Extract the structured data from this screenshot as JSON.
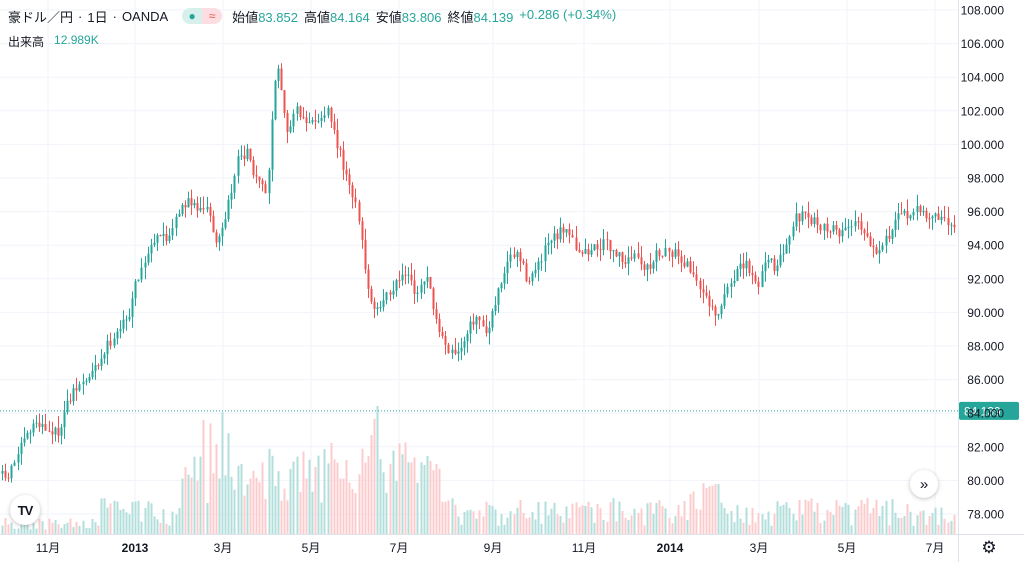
{
  "legend": {
    "symbol": "豪ドル／円",
    "interval": "1日",
    "source": "OANDA",
    "ohlc": [
      {
        "label": "始値",
        "value": "83.852"
      },
      {
        "label": "高値",
        "value": "84.164"
      },
      {
        "label": "安値",
        "value": "83.806"
      },
      {
        "label": "終値",
        "value": "84.139"
      }
    ],
    "change": "+0.286 (+0.34%)",
    "badge_left": "●",
    "badge_right": "≈"
  },
  "volume_legend": {
    "label": "出来高",
    "value": "12.989K"
  },
  "price_label": "84.139",
  "icons": {
    "logo": "tradingview-logo-icon",
    "scroll": "double-chevron-right-icon",
    "settings": "gear-icon"
  },
  "colors": {
    "up": "#26a69a",
    "down": "#ef5350",
    "up_volume": "#b2dfdb",
    "down_volume": "#fccbcd",
    "last_price": "#26a69a"
  },
  "chart_data": {
    "type": "candlestick",
    "y_axis": {
      "ticks": [
        "108.000",
        "106.000",
        "104.000",
        "102.000",
        "100.000",
        "98.000",
        "96.000",
        "94.000",
        "92.000",
        "90.000",
        "88.000",
        "86.000",
        "84.000",
        "82.000",
        "80.000",
        "78.000"
      ],
      "range": [
        77,
        108.5
      ]
    },
    "x_axis": {
      "ticks": [
        {
          "label": "11月",
          "bold": false
        },
        {
          "label": "2013",
          "bold": true
        },
        {
          "label": "3月",
          "bold": false
        },
        {
          "label": "5月",
          "bold": false
        },
        {
          "label": "7月",
          "bold": false
        },
        {
          "label": "9月",
          "bold": false
        },
        {
          "label": "11月",
          "bold": false
        },
        {
          "label": "2014",
          "bold": true
        },
        {
          "label": "3月",
          "bold": false
        },
        {
          "label": "5月",
          "bold": false
        },
        {
          "label": "7月",
          "bold": false
        }
      ]
    },
    "last_price": 84.139,
    "price_path": [
      [
        0,
        80.5
      ],
      [
        10,
        80.0
      ],
      [
        20,
        81.5
      ],
      [
        30,
        82.6
      ],
      [
        40,
        83.6
      ],
      [
        50,
        83.0
      ],
      [
        60,
        82.8
      ],
      [
        70,
        84.5
      ],
      [
        80,
        85.5
      ],
      [
        90,
        86.0
      ],
      [
        100,
        86.8
      ],
      [
        110,
        88.0
      ],
      [
        120,
        89.0
      ],
      [
        130,
        89.5
      ],
      [
        140,
        92.0
      ],
      [
        150,
        93.5
      ],
      [
        160,
        94.8
      ],
      [
        170,
        94.3
      ],
      [
        180,
        96.0
      ],
      [
        190,
        96.5
      ],
      [
        200,
        96.3
      ],
      [
        210,
        96.5
      ],
      [
        220,
        94.0
      ],
      [
        230,
        96.0
      ],
      [
        240,
        99.0
      ],
      [
        250,
        99.4
      ],
      [
        260,
        98.0
      ],
      [
        270,
        97.2
      ],
      [
        275,
        102.0
      ],
      [
        280,
        104.5
      ],
      [
        285,
        103.0
      ],
      [
        290,
        101.0
      ],
      [
        300,
        102.0
      ],
      [
        310,
        101.0
      ],
      [
        320,
        101.5
      ],
      [
        330,
        102.0
      ],
      [
        340,
        100.0
      ],
      [
        350,
        98.0
      ],
      [
        360,
        96.0
      ],
      [
        365,
        94.0
      ],
      [
        370,
        91.5
      ],
      [
        380,
        90.0
      ],
      [
        390,
        91.0
      ],
      [
        400,
        92.0
      ],
      [
        410,
        92.3
      ],
      [
        420,
        91.0
      ],
      [
        430,
        92.0
      ],
      [
        440,
        89.0
      ],
      [
        450,
        88.0
      ],
      [
        460,
        87.6
      ],
      [
        470,
        89.0
      ],
      [
        480,
        89.5
      ],
      [
        490,
        88.5
      ],
      [
        500,
        91.0
      ],
      [
        510,
        93.0
      ],
      [
        520,
        93.5
      ],
      [
        530,
        92.0
      ],
      [
        540,
        92.5
      ],
      [
        550,
        94.0
      ],
      [
        560,
        94.5
      ],
      [
        570,
        95.2
      ],
      [
        580,
        93.8
      ],
      [
        590,
        93.5
      ],
      [
        600,
        94.0
      ],
      [
        610,
        94.0
      ],
      [
        620,
        93.5
      ],
      [
        630,
        93.0
      ],
      [
        640,
        93.5
      ],
      [
        650,
        92.5
      ],
      [
        660,
        93.5
      ],
      [
        670,
        93.8
      ],
      [
        680,
        93.5
      ],
      [
        690,
        92.8
      ],
      [
        700,
        92.0
      ],
      [
        710,
        90.5
      ],
      [
        720,
        89.5
      ],
      [
        730,
        91.5
      ],
      [
        740,
        92.5
      ],
      [
        750,
        92.8
      ],
      [
        760,
        91.5
      ],
      [
        770,
        93.5
      ],
      [
        780,
        92.5
      ],
      [
        790,
        94.5
      ],
      [
        800,
        95.8
      ],
      [
        810,
        95.5
      ],
      [
        820,
        95.3
      ],
      [
        830,
        95.0
      ],
      [
        840,
        94.8
      ],
      [
        850,
        95.0
      ],
      [
        860,
        95.6
      ],
      [
        870,
        94.5
      ],
      [
        880,
        93.8
      ],
      [
        890,
        94.5
      ],
      [
        900,
        95.5
      ],
      [
        910,
        95.9
      ],
      [
        920,
        96.0
      ],
      [
        930,
        95.8
      ],
      [
        940,
        95.7
      ],
      [
        950,
        95.3
      ]
    ]
  }
}
